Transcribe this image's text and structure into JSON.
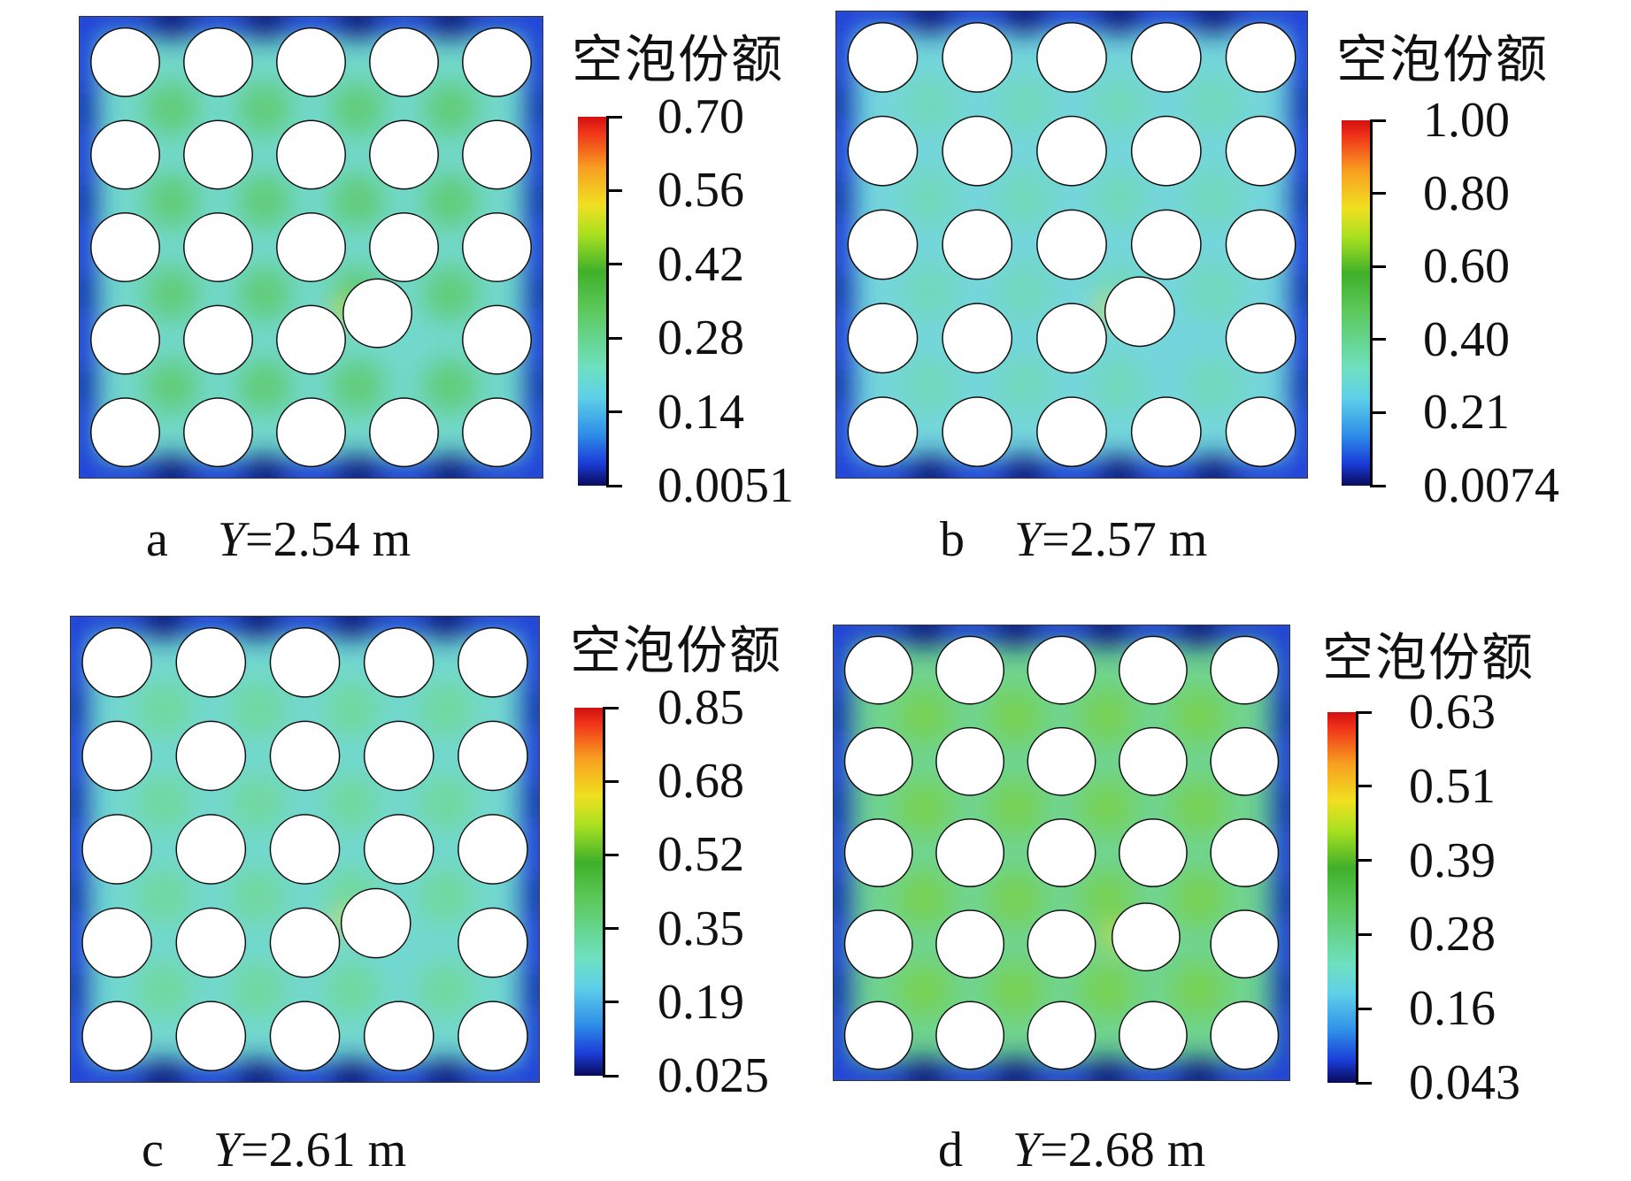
{
  "chart_data": {
    "type": "heatmap",
    "title": "",
    "colorbar_title": "空泡份额",
    "colormap": [
      "#0a0a5a",
      "#1a3cd8",
      "#5ed0e8",
      "#3fb02a",
      "#f0e020",
      "#f8a020",
      "#d01010"
    ],
    "panels": [
      {
        "label": "a",
        "variable": "Y",
        "value_text": "=2.54 m",
        "Y_m": 2.54,
        "cbar_ticks": [
          "0.70",
          "0.56",
          "0.42",
          "0.28",
          "0.14",
          "0.0051"
        ],
        "cbar_range": [
          0.0051,
          0.7
        ],
        "base_color": "#72d8cc",
        "blob_color": "#5cc860"
      },
      {
        "label": "b",
        "variable": "Y",
        "value_text": "=2.57 m",
        "Y_m": 2.57,
        "cbar_ticks": [
          "1.00",
          "0.80",
          "0.60",
          "0.40",
          "0.21",
          "0.0074"
        ],
        "cbar_range": [
          0.0074,
          1.0
        ],
        "base_color": "#74d6dc",
        "blob_color": "#70d8b0"
      },
      {
        "label": "c",
        "variable": "Y",
        "value_text": "=2.61 m",
        "Y_m": 2.61,
        "cbar_ticks": [
          "0.85",
          "0.68",
          "0.52",
          "0.35",
          "0.19",
          "0.025"
        ],
        "cbar_range": [
          0.025,
          0.85
        ],
        "base_color": "#72d8d0",
        "blob_color": "#70d890"
      },
      {
        "label": "d",
        "variable": "Y",
        "value_text": "=2.68 m",
        "Y_m": 2.68,
        "cbar_ticks": [
          "0.63",
          "0.51",
          "0.39",
          "0.28",
          "0.16",
          "0.043"
        ],
        "cbar_range": [
          0.043,
          0.63
        ],
        "base_color": "#6fd490",
        "blob_color": "#7ad040"
      }
    ]
  }
}
